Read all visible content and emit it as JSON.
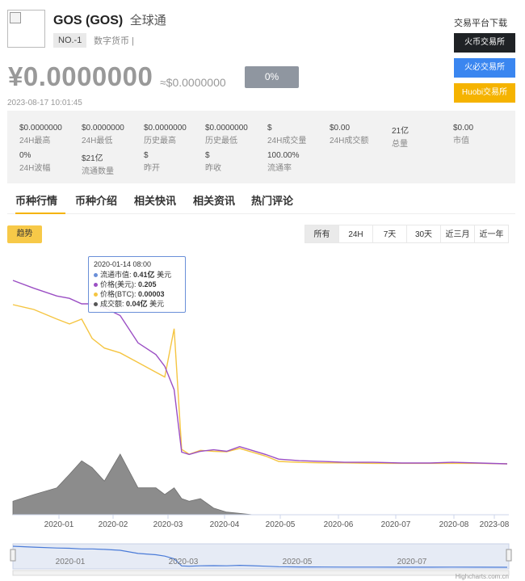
{
  "coin": {
    "name": "GOS (GOS)",
    "alias": "全球通",
    "rank": "NO.-1",
    "tags": "数字货币 |",
    "price_cny": "¥0.0000000",
    "price_usd": "≈$0.0000000",
    "change": "0%",
    "update_time": "2023-08-17 10:01:45"
  },
  "exchanges": {
    "title": "交易平台下载",
    "items": [
      {
        "label": "火币交易所",
        "color": "#1f2225"
      },
      {
        "label": "火必交易所",
        "color": "#3a86f0"
      },
      {
        "label": "Huobi交易所",
        "color": "#f5b300"
      }
    ]
  },
  "stats": [
    {
      "value": "$0.0000000",
      "label": "24H最高"
    },
    {
      "value": "$0.0000000",
      "label": "24H最低"
    },
    {
      "value": "$0.0000000",
      "label": "历史最高"
    },
    {
      "value": "$0.0000000",
      "label": "历史最低"
    },
    {
      "value": "$",
      "label": "24H成交量"
    },
    {
      "value": "$0.00",
      "label": "24H成交额"
    },
    {
      "value": "21亿",
      "label": "总量"
    },
    {
      "value": "$0.00",
      "label": "市值"
    },
    {
      "value": "0%",
      "label": "24H波幅"
    },
    {
      "value": "$21亿",
      "label": "流通数量"
    },
    {
      "value": "$",
      "label": "昨开"
    },
    {
      "value": "$",
      "label": "昨收"
    },
    {
      "value": "100.00%",
      "label": "流通率"
    }
  ],
  "tabs": [
    "币种行情",
    "币种介绍",
    "相关快讯",
    "相关资讯",
    "热门评论"
  ],
  "chart_controls": {
    "trend_label": "趋势",
    "ranges": [
      "所有",
      "24H",
      "7天",
      "30天",
      "近三月",
      "近一年"
    ],
    "active_range": "所有"
  },
  "tooltip": {
    "date": "2020-01-14 08:00",
    "rows": [
      {
        "label": "流通市值:",
        "value": "0.41亿",
        "unit": "美元",
        "color": "#6a8fd8"
      },
      {
        "label": "价格(美元):",
        "value": "0.205",
        "unit": "",
        "color": "#9b4fc4"
      },
      {
        "label": "价格(BTC):",
        "value": "0.00003",
        "unit": "",
        "color": "#f5c542"
      },
      {
        "label": "成交额:",
        "value": "0.04亿",
        "unit": "美元",
        "color": "#555555"
      }
    ]
  },
  "chart_data": {
    "type": "line",
    "x_ticks": [
      "2020-01",
      "2020-02",
      "2020-03",
      "2020-04",
      "2020-05",
      "2020-06",
      "2020-07",
      "2020-08",
      "2023-08"
    ],
    "navigator_ticks": [
      "2020-01",
      "2020-03",
      "2020-05",
      "2020-07"
    ],
    "credit": "Highcharts.com.cn",
    "series": [
      {
        "name": "价格(美元)",
        "color": "#9b4fc4",
        "x": [
          "2019-12-10",
          "2019-12-20",
          "2019-12-31",
          "2020-01-07",
          "2020-01-14",
          "2020-01-20",
          "2020-01-27",
          "2020-02-05",
          "2020-02-15",
          "2020-02-25",
          "2020-03-01",
          "2020-03-06",
          "2020-03-10",
          "2020-03-14",
          "2020-03-20",
          "2020-03-27",
          "2020-04-03",
          "2020-04-10",
          "2020-04-17",
          "2020-04-24",
          "2020-05-01",
          "2020-05-12",
          "2020-05-25",
          "2020-06-05",
          "2020-06-20",
          "2020-07-05",
          "2020-07-20",
          "2020-08-01",
          "2020-08-10",
          "2023-08-17"
        ],
        "values": [
          0.235,
          0.225,
          0.215,
          0.212,
          0.205,
          0.205,
          0.2,
          0.19,
          0.155,
          0.14,
          0.125,
          0.095,
          0.015,
          0.012,
          0.016,
          0.018,
          0.016,
          0.022,
          0.017,
          0.012,
          0.006,
          0.004,
          0.003,
          0.002,
          0.002,
          0.001,
          0.001,
          0.002,
          0.001,
          0.0
        ]
      },
      {
        "name": "价格(BTC)",
        "color": "#f5c542",
        "x": [
          "2019-12-10",
          "2019-12-20",
          "2019-12-31",
          "2020-01-07",
          "2020-01-14",
          "2020-01-20",
          "2020-01-27",
          "2020-02-05",
          "2020-02-15",
          "2020-02-25",
          "2020-03-01",
          "2020-03-06",
          "2020-03-10",
          "2020-03-14",
          "2020-03-20",
          "2020-03-27",
          "2020-04-03",
          "2020-04-10",
          "2020-04-17",
          "2020-04-24",
          "2020-05-01",
          "2020-05-12",
          "2020-05-25",
          "2020-06-05",
          "2020-06-20",
          "2020-07-05",
          "2020-07-20",
          "2020-08-01",
          "2020-08-10",
          "2023-08-17"
        ],
        "values": [
          3.3e-05,
          3.2e-05,
          3e-05,
          2.9e-05,
          3e-05,
          2.6e-05,
          2.4e-05,
          2.3e-05,
          2.1e-05,
          1.9e-05,
          1.8e-05,
          2.8e-05,
          3e-06,
          2e-06,
          2.8e-06,
          2.6e-06,
          2.5e-06,
          3.2e-06,
          2.4e-06,
          1.6e-06,
          5e-07,
          3e-07,
          2e-07,
          2e-07,
          1e-07,
          1e-07,
          1e-07,
          1e-07,
          1e-07,
          0.0
        ]
      },
      {
        "name": "成交额",
        "color": "#555555",
        "x": [
          "2019-12-10",
          "2019-12-20",
          "2019-12-31",
          "2020-01-07",
          "2020-01-14",
          "2020-01-20",
          "2020-01-27",
          "2020-02-05",
          "2020-02-15",
          "2020-02-25",
          "2020-03-01",
          "2020-03-06",
          "2020-03-10",
          "2020-03-14",
          "2020-03-20",
          "2020-03-27",
          "2020-04-03",
          "2020-04-10",
          "2020-04-17",
          "2020-04-24",
          "2020-05-01",
          "2020-05-12",
          "2020-05-25",
          "2020-06-05",
          "2020-06-20",
          "2020-07-05",
          "2020-07-20",
          "2020-08-01",
          "2020-08-10",
          "2023-08-17"
        ],
        "values": [
          0.01,
          0.015,
          0.02,
          0.03,
          0.04,
          0.035,
          0.025,
          0.045,
          0.02,
          0.02,
          0.015,
          0.02,
          0.012,
          0.01,
          0.012,
          0.005,
          0.002,
          0.001,
          0.0,
          0.0,
          0.0,
          0.0,
          0.0,
          0.0,
          0.0,
          0.0,
          0.0,
          0.0,
          0.0,
          0.0
        ]
      }
    ]
  }
}
